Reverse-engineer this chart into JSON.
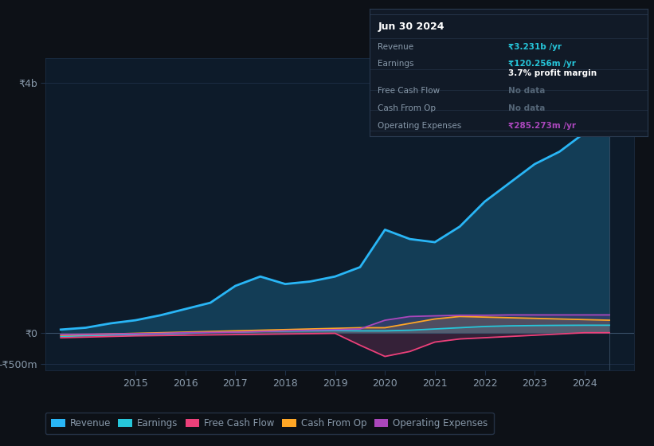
{
  "background_color": "#0d1117",
  "plot_bg_color": "#0d1b2a",
  "grid_color": "#1e3048",
  "text_color": "#8899aa",
  "title_color": "#ffffff",
  "ylim": [
    -600,
    4400
  ],
  "xlim": [
    2013.2,
    2025.0
  ],
  "ytick_vals": [
    -500,
    0,
    4000
  ],
  "ytick_labels": [
    "-₹500m",
    "₹0",
    "₹4b"
  ],
  "xtick_vals": [
    2015,
    2016,
    2017,
    2018,
    2019,
    2020,
    2021,
    2022,
    2023,
    2024
  ],
  "legend_items": [
    "Revenue",
    "Earnings",
    "Free Cash Flow",
    "Cash From Op",
    "Operating Expenses"
  ],
  "legend_colors": [
    "#29b6f6",
    "#26c6da",
    "#ec407a",
    "#ffa726",
    "#ab47bc"
  ],
  "x_years": [
    2013.5,
    2014.0,
    2014.5,
    2015.0,
    2015.5,
    2016.0,
    2016.5,
    2017.0,
    2017.5,
    2018.0,
    2018.5,
    2019.0,
    2019.5,
    2020.0,
    2020.5,
    2021.0,
    2021.5,
    2022.0,
    2022.5,
    2023.0,
    2023.5,
    2024.0,
    2024.5
  ],
  "revenue": [
    50,
    80,
    150,
    200,
    280,
    380,
    480,
    750,
    900,
    780,
    820,
    900,
    1050,
    1650,
    1500,
    1450,
    1700,
    2100,
    2400,
    2700,
    2900,
    3200,
    3231
  ],
  "earnings": [
    -60,
    -50,
    -40,
    -30,
    -20,
    -10,
    5,
    10,
    20,
    25,
    30,
    35,
    30,
    30,
    40,
    60,
    80,
    100,
    110,
    115,
    118,
    120,
    120
  ],
  "free_cash_flow": [
    -80,
    -70,
    -60,
    -50,
    -45,
    -40,
    -35,
    -30,
    -25,
    -20,
    -15,
    -10,
    -200,
    -380,
    -300,
    -150,
    -100,
    -80,
    -60,
    -40,
    -20,
    0,
    0
  ],
  "cash_from_op": [
    -40,
    -30,
    -20,
    -10,
    0,
    10,
    20,
    30,
    40,
    50,
    60,
    70,
    80,
    80,
    150,
    220,
    260,
    250,
    240,
    230,
    220,
    210,
    200
  ],
  "operating_expenses": [
    -30,
    -25,
    -20,
    -15,
    -10,
    0,
    5,
    10,
    20,
    30,
    40,
    50,
    60,
    200,
    260,
    270,
    280,
    280,
    285,
    285,
    285,
    285,
    285
  ],
  "info_box": {
    "title": "Jun 30 2024",
    "bg_color": "#111a27",
    "border_color": "#2a3a50",
    "rows": [
      {
        "label": "Revenue",
        "value": "₹3.231b /yr",
        "value_color": "#26c6da",
        "extra": null
      },
      {
        "label": "Earnings",
        "value": "₹120.256m /yr",
        "value_color": "#26c6da",
        "extra": "3.7% profit margin"
      },
      {
        "label": "Free Cash Flow",
        "value": "No data",
        "value_color": "#556677",
        "extra": null
      },
      {
        "label": "Cash From Op",
        "value": "No data",
        "value_color": "#556677",
        "extra": null
      },
      {
        "label": "Operating Expenses",
        "value": "₹285.273m /yr",
        "value_color": "#ab47bc",
        "extra": null
      }
    ]
  }
}
